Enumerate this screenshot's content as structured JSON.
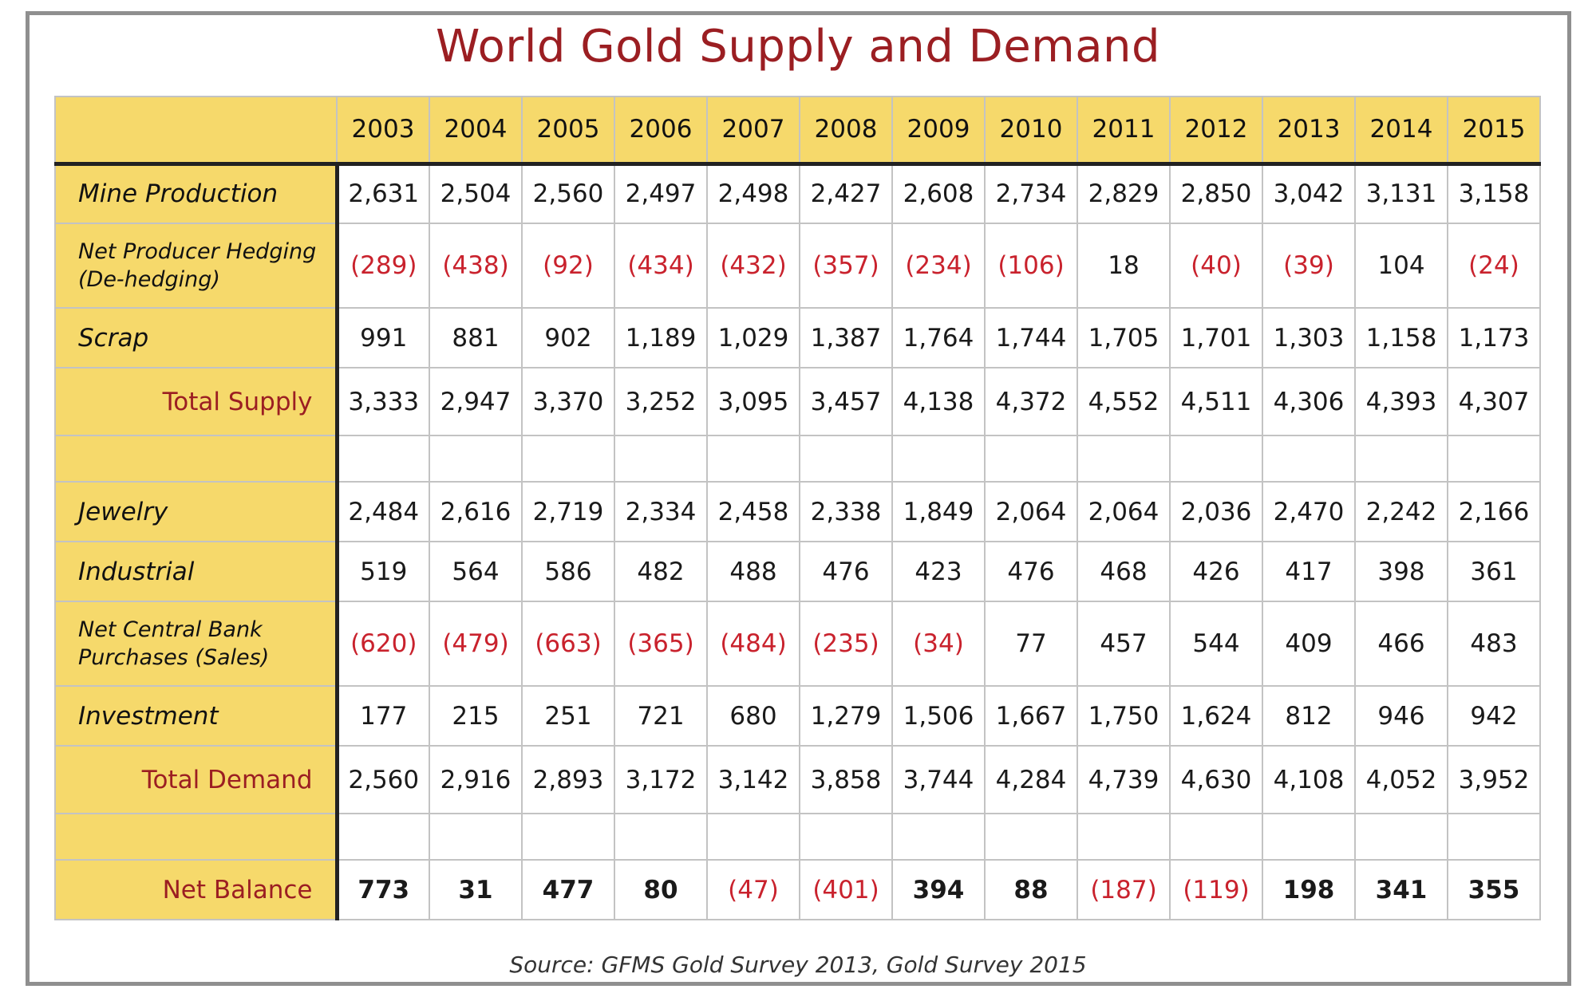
{
  "chart_data": {
    "type": "table",
    "title": "World Gold Supply and Demand",
    "source": "Source: GFMS Gold Survey 2013, Gold Survey 2015",
    "years": [
      "2003",
      "2004",
      "2005",
      "2006",
      "2007",
      "2008",
      "2009",
      "2010",
      "2011",
      "2012",
      "2013",
      "2014",
      "2015"
    ],
    "rows": [
      {
        "label": "Mine Production",
        "kind": "normal",
        "values": [
          "2,631",
          "2,504",
          "2,560",
          "2,497",
          "2,498",
          "2,427",
          "2,608",
          "2,734",
          "2,829",
          "2,850",
          "3,042",
          "3,131",
          "3,158"
        ]
      },
      {
        "label": "Net Producer Hedging (De-hedging)",
        "kind": "two",
        "values": [
          "(289)",
          "(438)",
          "(92)",
          "(434)",
          "(432)",
          "(357)",
          "(234)",
          "(106)",
          "18",
          "(40)",
          "(39)",
          "104",
          "(24)"
        ]
      },
      {
        "label": "Scrap",
        "kind": "normal",
        "values": [
          "991",
          "881",
          "902",
          "1,189",
          "1,029",
          "1,387",
          "1,764",
          "1,744",
          "1,705",
          "1,701",
          "1,303",
          "1,158",
          "1,173"
        ]
      },
      {
        "label": "Total Supply",
        "kind": "total",
        "values": [
          "3,333",
          "2,947",
          "3,370",
          "3,252",
          "3,095",
          "3,457",
          "4,138",
          "4,372",
          "4,552",
          "4,511",
          "4,306",
          "4,393",
          "4,307"
        ]
      },
      {
        "label": "",
        "kind": "blank",
        "values": [
          "",
          "",
          "",
          "",
          "",
          "",
          "",
          "",
          "",
          "",
          "",
          "",
          ""
        ]
      },
      {
        "label": "Jewelry",
        "kind": "normal",
        "values": [
          "2,484",
          "2,616",
          "2,719",
          "2,334",
          "2,458",
          "2,338",
          "1,849",
          "2,064",
          "2,064",
          "2,036",
          "2,470",
          "2,242",
          "2,166"
        ]
      },
      {
        "label": "Industrial",
        "kind": "normal",
        "values": [
          "519",
          "564",
          "586",
          "482",
          "488",
          "476",
          "423",
          "476",
          "468",
          "426",
          "417",
          "398",
          "361"
        ]
      },
      {
        "label": "Net Central Bank Purchases (Sales)",
        "kind": "two",
        "values": [
          "(620)",
          "(479)",
          "(663)",
          "(365)",
          "(484)",
          "(235)",
          "(34)",
          "77",
          "457",
          "544",
          "409",
          "466",
          "483"
        ]
      },
      {
        "label": "Investment",
        "kind": "normal",
        "values": [
          "177",
          "215",
          "251",
          "721",
          "680",
          "1,279",
          "1,506",
          "1,667",
          "1,750",
          "1,624",
          "812",
          "946",
          "942"
        ]
      },
      {
        "label": "Total Demand",
        "kind": "total",
        "values": [
          "2,560",
          "2,916",
          "2,893",
          "3,172",
          "3,142",
          "3,858",
          "3,744",
          "4,284",
          "4,739",
          "4,630",
          "4,108",
          "4,052",
          "3,952"
        ]
      },
      {
        "label": "",
        "kind": "blank",
        "values": [
          "",
          "",
          "",
          "",
          "",
          "",
          "",
          "",
          "",
          "",
          "",
          "",
          ""
        ]
      },
      {
        "label": "Net Balance",
        "kind": "balance",
        "values": [
          "773",
          "31",
          "477",
          "80",
          "(47)",
          "(401)",
          "394",
          "88",
          "(187)",
          "(119)",
          "198",
          "341",
          "355"
        ]
      }
    ],
    "negative_color": "#c9222d",
    "highlight_color": "#f6d96b",
    "title_color": "#9b1e22"
  }
}
